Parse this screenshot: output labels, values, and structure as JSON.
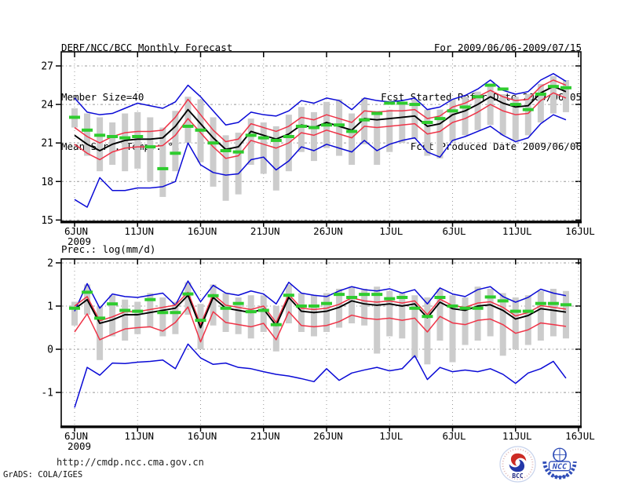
{
  "header": {
    "title": "DERF/NCC/BCC Monthly Forecast",
    "member_size": "Member Size=40",
    "for_period": "For 2009/06/06-2009/07/15",
    "refer_date": "Fcst Started Refer Date 2009/06/05",
    "produced_date": "Fcst Produced Date 2009/06/06"
  },
  "footer": {
    "url": "http://cmdp.ncc.cma.gov.cn",
    "grads_credit": "GrADS: COLA/IGES",
    "logos": [
      {
        "name": "bcc-logo",
        "label": "BCC"
      },
      {
        "name": "ncc-logo",
        "label": "NCC"
      }
    ]
  },
  "colors": {
    "envelope_blue": "#0a0ad6",
    "band_red": "#ef3347",
    "median_black": "#000000",
    "obs_green": "#2ecc2e",
    "spread_bar_gray": "#cccccc",
    "grid_gray": "#999999",
    "frame_black": "#000000"
  },
  "chart_data": [
    {
      "type": "line",
      "title": "Mean Surf. Temp.: °C",
      "ylabel": "°C",
      "x_year_label": "2009",
      "x_tick_labels": [
        "6JUN",
        "11JUN",
        "16JUN",
        "21JUN",
        "26JUN",
        "1JUL",
        "6JUL",
        "11JUL",
        "16JUL"
      ],
      "x_tick_days": [
        0,
        5,
        10,
        15,
        20,
        25,
        30,
        35,
        40
      ],
      "n_days": 40,
      "yticks": [
        15,
        18,
        21,
        24,
        27
      ],
      "ylim": [
        14.9,
        28.1
      ],
      "grid": true,
      "legend": "none",
      "series": [
        {
          "name": "blue-upper-envelope",
          "color": "#0a0ad6",
          "values": [
            24.5,
            23.4,
            23.2,
            23.3,
            23.7,
            24.1,
            23.9,
            23.7,
            24.2,
            25.5,
            24.6,
            23.5,
            22.4,
            22.6,
            23.4,
            23.2,
            23.1,
            23.5,
            24.3,
            24.1,
            24.5,
            24.3,
            23.6,
            24.5,
            24.3,
            24.2,
            24.3,
            24.5,
            23.6,
            23.8,
            24.4,
            24.7,
            25.2,
            25.9,
            25.1,
            24.8,
            25.0,
            25.9,
            26.4,
            25.8
          ]
        },
        {
          "name": "blue-lower-envelope",
          "color": "#0a0ad6",
          "values": [
            16.6,
            16.0,
            18.3,
            17.3,
            17.3,
            17.5,
            17.5,
            17.6,
            18.0,
            21.0,
            19.3,
            18.7,
            18.5,
            18.6,
            19.7,
            19.9,
            18.9,
            19.6,
            20.7,
            20.4,
            20.9,
            20.6,
            20.3,
            21.2,
            20.4,
            20.9,
            21.2,
            21.4,
            20.3,
            19.9,
            21.2,
            21.5,
            21.9,
            22.3,
            21.6,
            21.1,
            21.4,
            22.5,
            23.2,
            22.8
          ]
        },
        {
          "name": "red-upper-band",
          "color": "#ef3347",
          "values": [
            22.2,
            21.5,
            21.0,
            21.5,
            21.8,
            21.9,
            21.9,
            22.0,
            23.0,
            24.4,
            23.2,
            22.0,
            21.1,
            21.3,
            22.5,
            22.2,
            21.9,
            22.3,
            23.0,
            22.8,
            23.2,
            22.9,
            22.6,
            23.5,
            23.4,
            23.5,
            23.5,
            23.6,
            22.9,
            23.1,
            23.8,
            24.1,
            24.6,
            25.1,
            24.6,
            24.3,
            24.4,
            25.4,
            25.9,
            25.5
          ]
        },
        {
          "name": "red-lower-band",
          "color": "#ef3347",
          "values": [
            20.9,
            20.2,
            19.7,
            20.3,
            20.6,
            20.7,
            20.7,
            20.8,
            21.6,
            22.9,
            21.8,
            20.7,
            19.8,
            20.0,
            21.2,
            20.9,
            20.6,
            21.0,
            21.8,
            21.6,
            22.0,
            21.7,
            21.4,
            22.3,
            22.2,
            22.3,
            22.4,
            22.5,
            21.7,
            21.9,
            22.6,
            22.9,
            23.4,
            24.0,
            23.5,
            23.2,
            23.3,
            24.3,
            24.9,
            24.5
          ]
        },
        {
          "name": "black-median",
          "color": "#000000",
          "values": [
            21.6,
            20.9,
            20.4,
            20.9,
            21.2,
            21.3,
            21.3,
            21.4,
            22.3,
            23.6,
            22.5,
            21.4,
            20.5,
            20.7,
            21.9,
            21.6,
            21.3,
            21.7,
            22.4,
            22.2,
            22.6,
            22.3,
            22.0,
            22.9,
            22.8,
            22.9,
            23.0,
            23.1,
            22.3,
            22.5,
            23.2,
            23.5,
            24.0,
            24.6,
            24.1,
            23.8,
            23.9,
            24.9,
            25.4,
            25.0
          ]
        }
      ],
      "green_dashes": {
        "name": "green-dash-segments",
        "values": [
          23.0,
          22.0,
          21.6,
          21.5,
          21.4,
          21.5,
          20.7,
          19.0,
          20.2,
          22.3,
          22.0,
          21.0,
          20.4,
          20.3,
          21.6,
          21.4,
          21.2,
          21.5,
          22.3,
          22.2,
          22.4,
          22.4,
          21.9,
          22.8,
          23.3,
          24.1,
          24.1,
          24.0,
          22.6,
          22.9,
          23.5,
          23.8,
          24.6,
          25.5,
          25.2,
          24.0,
          23.6,
          24.8,
          25.4,
          25.3
        ]
      },
      "spread_bars": {
        "name": "gray-spread-bars",
        "top": [
          23.7,
          23.3,
          23.0,
          22.6,
          23.3,
          23.4,
          23.0,
          22.2,
          23.5,
          24.6,
          24.4,
          23.0,
          21.6,
          21.8,
          22.9,
          22.6,
          22.3,
          23.2,
          23.8,
          23.4,
          24.2,
          24.4,
          23.3,
          24.5,
          23.5,
          23.6,
          24.2,
          24.4,
          23.6,
          23.6,
          24.4,
          24.6,
          25.0,
          25.6,
          24.8,
          24.6,
          24.8,
          25.6,
          26.2,
          25.9
        ],
        "bottom": [
          22.2,
          20.0,
          18.8,
          19.3,
          18.8,
          19.0,
          18.0,
          16.8,
          18.8,
          21.0,
          19.5,
          17.6,
          16.5,
          17.0,
          19.3,
          18.6,
          17.3,
          18.8,
          20.3,
          19.6,
          20.6,
          20.0,
          19.3,
          20.9,
          19.3,
          20.3,
          21.0,
          21.3,
          20.0,
          19.8,
          21.1,
          21.6,
          22.0,
          22.4,
          21.6,
          21.2,
          21.6,
          22.6,
          23.3,
          23.4
        ]
      }
    },
    {
      "type": "line",
      "title": "Prec.: log(mm/d)",
      "ylabel": "log(mm/d)",
      "x_year_label": "2009",
      "x_tick_labels": [
        "6JUN",
        "11JUN",
        "16JUN",
        "21JUN",
        "26JUN",
        "1JUL",
        "6JUL",
        "11JUL",
        "16JUL"
      ],
      "x_tick_days": [
        0,
        5,
        10,
        15,
        20,
        25,
        30,
        35,
        40
      ],
      "n_days": 40,
      "yticks": [
        -1,
        0,
        1,
        2
      ],
      "ylim": [
        -1.78,
        2.09
      ],
      "grid": true,
      "legend": "none",
      "series": [
        {
          "name": "blue-upper-envelope",
          "color": "#0a0ad6",
          "values": [
            0.88,
            1.52,
            0.95,
            1.28,
            1.22,
            1.2,
            1.25,
            1.3,
            1.02,
            1.58,
            1.1,
            1.48,
            1.3,
            1.25,
            1.35,
            1.28,
            1.05,
            1.55,
            1.3,
            1.25,
            1.22,
            1.35,
            1.45,
            1.38,
            1.35,
            1.4,
            1.3,
            1.38,
            1.05,
            1.42,
            1.28,
            1.22,
            1.38,
            1.45,
            1.22,
            1.09,
            1.2,
            1.39,
            1.3,
            1.24
          ]
        },
        {
          "name": "blue-lower-envelope",
          "color": "#0a0ad6",
          "values": [
            -1.35,
            -0.42,
            -0.6,
            -0.32,
            -0.33,
            -0.3,
            -0.28,
            -0.25,
            -0.45,
            0.12,
            -0.2,
            -0.35,
            -0.32,
            -0.42,
            -0.45,
            -0.52,
            -0.58,
            -0.62,
            -0.68,
            -0.75,
            -0.45,
            -0.72,
            -0.55,
            -0.48,
            -0.42,
            -0.5,
            -0.45,
            -0.15,
            -0.7,
            -0.42,
            -0.52,
            -0.48,
            -0.52,
            -0.45,
            -0.58,
            -0.79,
            -0.55,
            -0.45,
            -0.28,
            -0.67
          ]
        },
        {
          "name": "red-upper-band",
          "color": "#ef3347",
          "values": [
            1.0,
            1.22,
            0.66,
            0.75,
            0.87,
            0.87,
            0.92,
            0.97,
            1.02,
            1.32,
            0.57,
            1.27,
            1.02,
            0.97,
            0.92,
            1.0,
            0.62,
            1.27,
            0.95,
            0.92,
            0.95,
            1.04,
            1.19,
            1.12,
            1.09,
            1.12,
            1.07,
            1.12,
            0.8,
            1.16,
            1.01,
            0.97,
            1.07,
            1.1,
            0.97,
            0.77,
            0.85,
            1.01,
            0.97,
            0.93
          ]
        },
        {
          "name": "red-lower-band",
          "color": "#ef3347",
          "values": [
            0.4,
            0.82,
            0.22,
            0.35,
            0.47,
            0.5,
            0.52,
            0.42,
            0.62,
            0.98,
            0.17,
            0.87,
            0.62,
            0.57,
            0.52,
            0.6,
            0.22,
            0.87,
            0.55,
            0.52,
            0.55,
            0.64,
            0.79,
            0.72,
            0.69,
            0.72,
            0.67,
            0.72,
            0.4,
            0.76,
            0.61,
            0.57,
            0.67,
            0.7,
            0.57,
            0.37,
            0.45,
            0.61,
            0.57,
            0.53
          ]
        },
        {
          "name": "black-median",
          "color": "#000000",
          "values": [
            0.93,
            1.15,
            0.6,
            0.68,
            0.8,
            0.8,
            0.85,
            0.9,
            0.95,
            1.25,
            0.5,
            1.2,
            0.95,
            0.9,
            0.85,
            0.93,
            0.55,
            1.2,
            0.88,
            0.85,
            0.88,
            0.97,
            1.12,
            1.05,
            1.02,
            1.05,
            1.0,
            1.05,
            0.73,
            1.09,
            0.94,
            0.9,
            1.0,
            1.03,
            0.9,
            0.7,
            0.78,
            0.94,
            0.9,
            0.86
          ]
        }
      ],
      "green_dashes": {
        "name": "green-dash-segments",
        "values": [
          0.95,
          1.32,
          0.72,
          1.05,
          0.9,
          0.88,
          1.15,
          0.85,
          0.85,
          1.28,
          0.67,
          1.24,
          0.95,
          1.06,
          0.87,
          0.9,
          0.57,
          1.25,
          1.0,
          1.0,
          1.06,
          1.27,
          1.2,
          1.27,
          1.27,
          1.17,
          1.2,
          0.95,
          0.76,
          1.2,
          1.0,
          0.95,
          0.95,
          1.21,
          1.12,
          0.88,
          0.88,
          1.06,
          1.06,
          1.03
        ]
      },
      "spread_bars": {
        "name": "gray-spread-bars",
        "top": [
          1.1,
          1.5,
          1.0,
          1.25,
          1.15,
          1.1,
          1.3,
          1.2,
          1.1,
          1.55,
          1.05,
          1.5,
          1.3,
          1.2,
          1.25,
          1.25,
          1.0,
          1.5,
          1.3,
          1.25,
          1.3,
          1.4,
          1.45,
          1.4,
          1.45,
          1.35,
          1.3,
          1.25,
          1.2,
          1.4,
          1.25,
          1.2,
          1.45,
          1.4,
          1.3,
          1.2,
          1.25,
          1.35,
          1.4,
          1.35
        ],
        "bottom": [
          0.55,
          0.8,
          -0.25,
          0.3,
          0.2,
          0.35,
          0.5,
          0.3,
          0.35,
          0.8,
          0.0,
          0.55,
          0.4,
          0.35,
          0.25,
          0.4,
          -0.05,
          0.6,
          0.4,
          0.3,
          0.4,
          0.5,
          0.6,
          0.55,
          -0.1,
          0.3,
          0.25,
          -0.2,
          -0.35,
          0.2,
          -0.3,
          0.1,
          0.2,
          0.3,
          -0.15,
          0.0,
          0.1,
          0.2,
          0.3,
          0.25
        ]
      }
    }
  ]
}
